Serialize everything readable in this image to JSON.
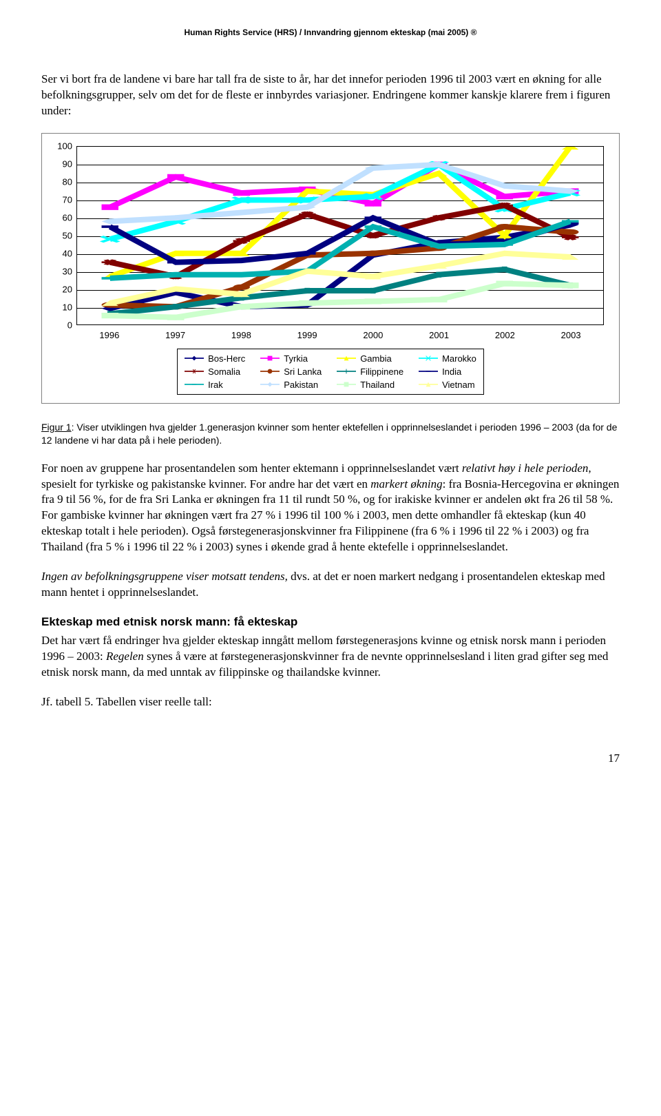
{
  "header": "Human Rights Service (HRS) / Innvandring gjennom ekteskap (mai 2005) ®",
  "para1": "Ser vi bort fra de landene vi bare har tall fra de siste to år, har det innefor perioden 1996 til 2003 vært en økning for alle befolkningsgrupper, selv om det for de fleste er innbyrdes variasjoner. Endringene kommer kanskje klarere frem i figuren under:",
  "figcap_a": "Figur 1",
  "figcap_b": ": Viser utviklingen hva gjelder 1.generasjon kvinner som henter ektefellen i opprinnelseslandet i perioden 1996 – 2003 (da for de 12 landene vi har data på i hele perioden).",
  "para2_a": "For noen av gruppene har prosentandelen som henter ektemann i opprinnelseslandet vært ",
  "para2_b": "relativt høy i hele perioden",
  "para2_c": ", spesielt for tyrkiske og pakistanske kvinner. For andre har det vært en ",
  "para2_d": "markert økning",
  "para2_e": ": fra Bosnia-Hercegovina er økningen fra 9 til 56 %, for de fra Sri Lanka er økningen fra 11 til rundt 50 %, og for irakiske kvinner er andelen økt fra 26 til 58 %. For gambiske kvinner har økningen vært fra 27 % i 1996 til 100 % i 2003, men dette omhandler få ekteskap (kun 40 ekteskap totalt i hele perioden). Også førstegenerasjonskvinner fra Filippinene (fra 6 % i 1996 til 22 % i 2003) og fra Thailand (fra 5 % i 1996 til 22 % i 2003) synes i økende grad å hente ektefelle i opprinnelseslandet.",
  "para3_a": "Ingen av befolkningsgruppene viser motsatt tendens,",
  "para3_b": " dvs. at det er noen markert nedgang i prosentandelen ekteskap med mann hentet i opprinnelseslandet.",
  "heading2": "Ekteskap med etnisk norsk mann: få ekteskap",
  "para4_a": "Det har vært få endringer hva gjelder ekteskap inngått mellom førstegenerasjons kvinne og etnisk norsk mann i perioden 1996 – 2003: ",
  "para4_b": "Regelen",
  "para4_c": " synes å være at førstegenerasjonskvinner fra de nevnte opprinnelsesland i liten grad gifter seg med etnisk norsk mann, da med unntak av filippinske og thailandske kvinner.",
  "para5": "Jf. tabell 5. Tabellen viser reelle tall:",
  "page_num": "17",
  "chart": {
    "type": "line",
    "years": [
      "1996",
      "1997",
      "1998",
      "1999",
      "2000",
      "2001",
      "2002",
      "2003"
    ],
    "ylim": [
      0,
      100
    ],
    "ytick_step": 10,
    "background_color": "#ffffff",
    "grid_color": "#000000",
    "label_fontsize": 13,
    "series": [
      {
        "name": "Bos-Herc",
        "color": "#000080",
        "marker": "diamond",
        "values": [
          9,
          18,
          10,
          11,
          39,
          46,
          49,
          56
        ]
      },
      {
        "name": "Tyrkia",
        "color": "#ff00ff",
        "marker": "square",
        "values": [
          66,
          83,
          74,
          76,
          68,
          90,
          72,
          75
        ]
      },
      {
        "name": "Gambia",
        "color": "#ffff00",
        "marker": "triangle",
        "values": [
          27,
          40,
          40,
          75,
          73,
          85,
          50,
          100
        ]
      },
      {
        "name": "Marokko",
        "color": "#00ffff",
        "marker": "x",
        "values": [
          48,
          58,
          70,
          70,
          72,
          90,
          65,
          74
        ]
      },
      {
        "name": "Somalia",
        "color": "#800000",
        "marker": "asterisk",
        "values": [
          35,
          27,
          47,
          62,
          50,
          60,
          67,
          49
        ]
      },
      {
        "name": "Sri Lanka",
        "color": "#993300",
        "marker": "circle",
        "values": [
          11,
          10,
          21,
          39,
          40,
          43,
          55,
          52
        ]
      },
      {
        "name": "Filippinene",
        "color": "#008080",
        "marker": "plus",
        "values": [
          6,
          10,
          15,
          19,
          19,
          28,
          31,
          22
        ]
      },
      {
        "name": "India",
        "color": "#000080",
        "marker": "dash",
        "values": [
          55,
          35,
          36,
          40,
          60,
          45,
          46,
          57
        ]
      },
      {
        "name": "Irak",
        "color": "#00b0b0",
        "marker": "bar",
        "values": [
          26,
          28,
          28,
          30,
          55,
          44,
          45,
          58
        ]
      },
      {
        "name": "Pakistan",
        "color": "#c0e0ff",
        "marker": "lightdiamond",
        "values": [
          58,
          60,
          63,
          66,
          88,
          90,
          78,
          75
        ]
      },
      {
        "name": "Thailand",
        "color": "#ccffcc",
        "marker": "lightsquare",
        "values": [
          5,
          4,
          10,
          12,
          13,
          14,
          23,
          22
        ]
      },
      {
        "name": "Vietnam",
        "color": "#ffff99",
        "marker": "lighttriangle",
        "values": [
          12,
          20,
          17,
          30,
          27,
          33,
          40,
          38
        ]
      }
    ]
  }
}
